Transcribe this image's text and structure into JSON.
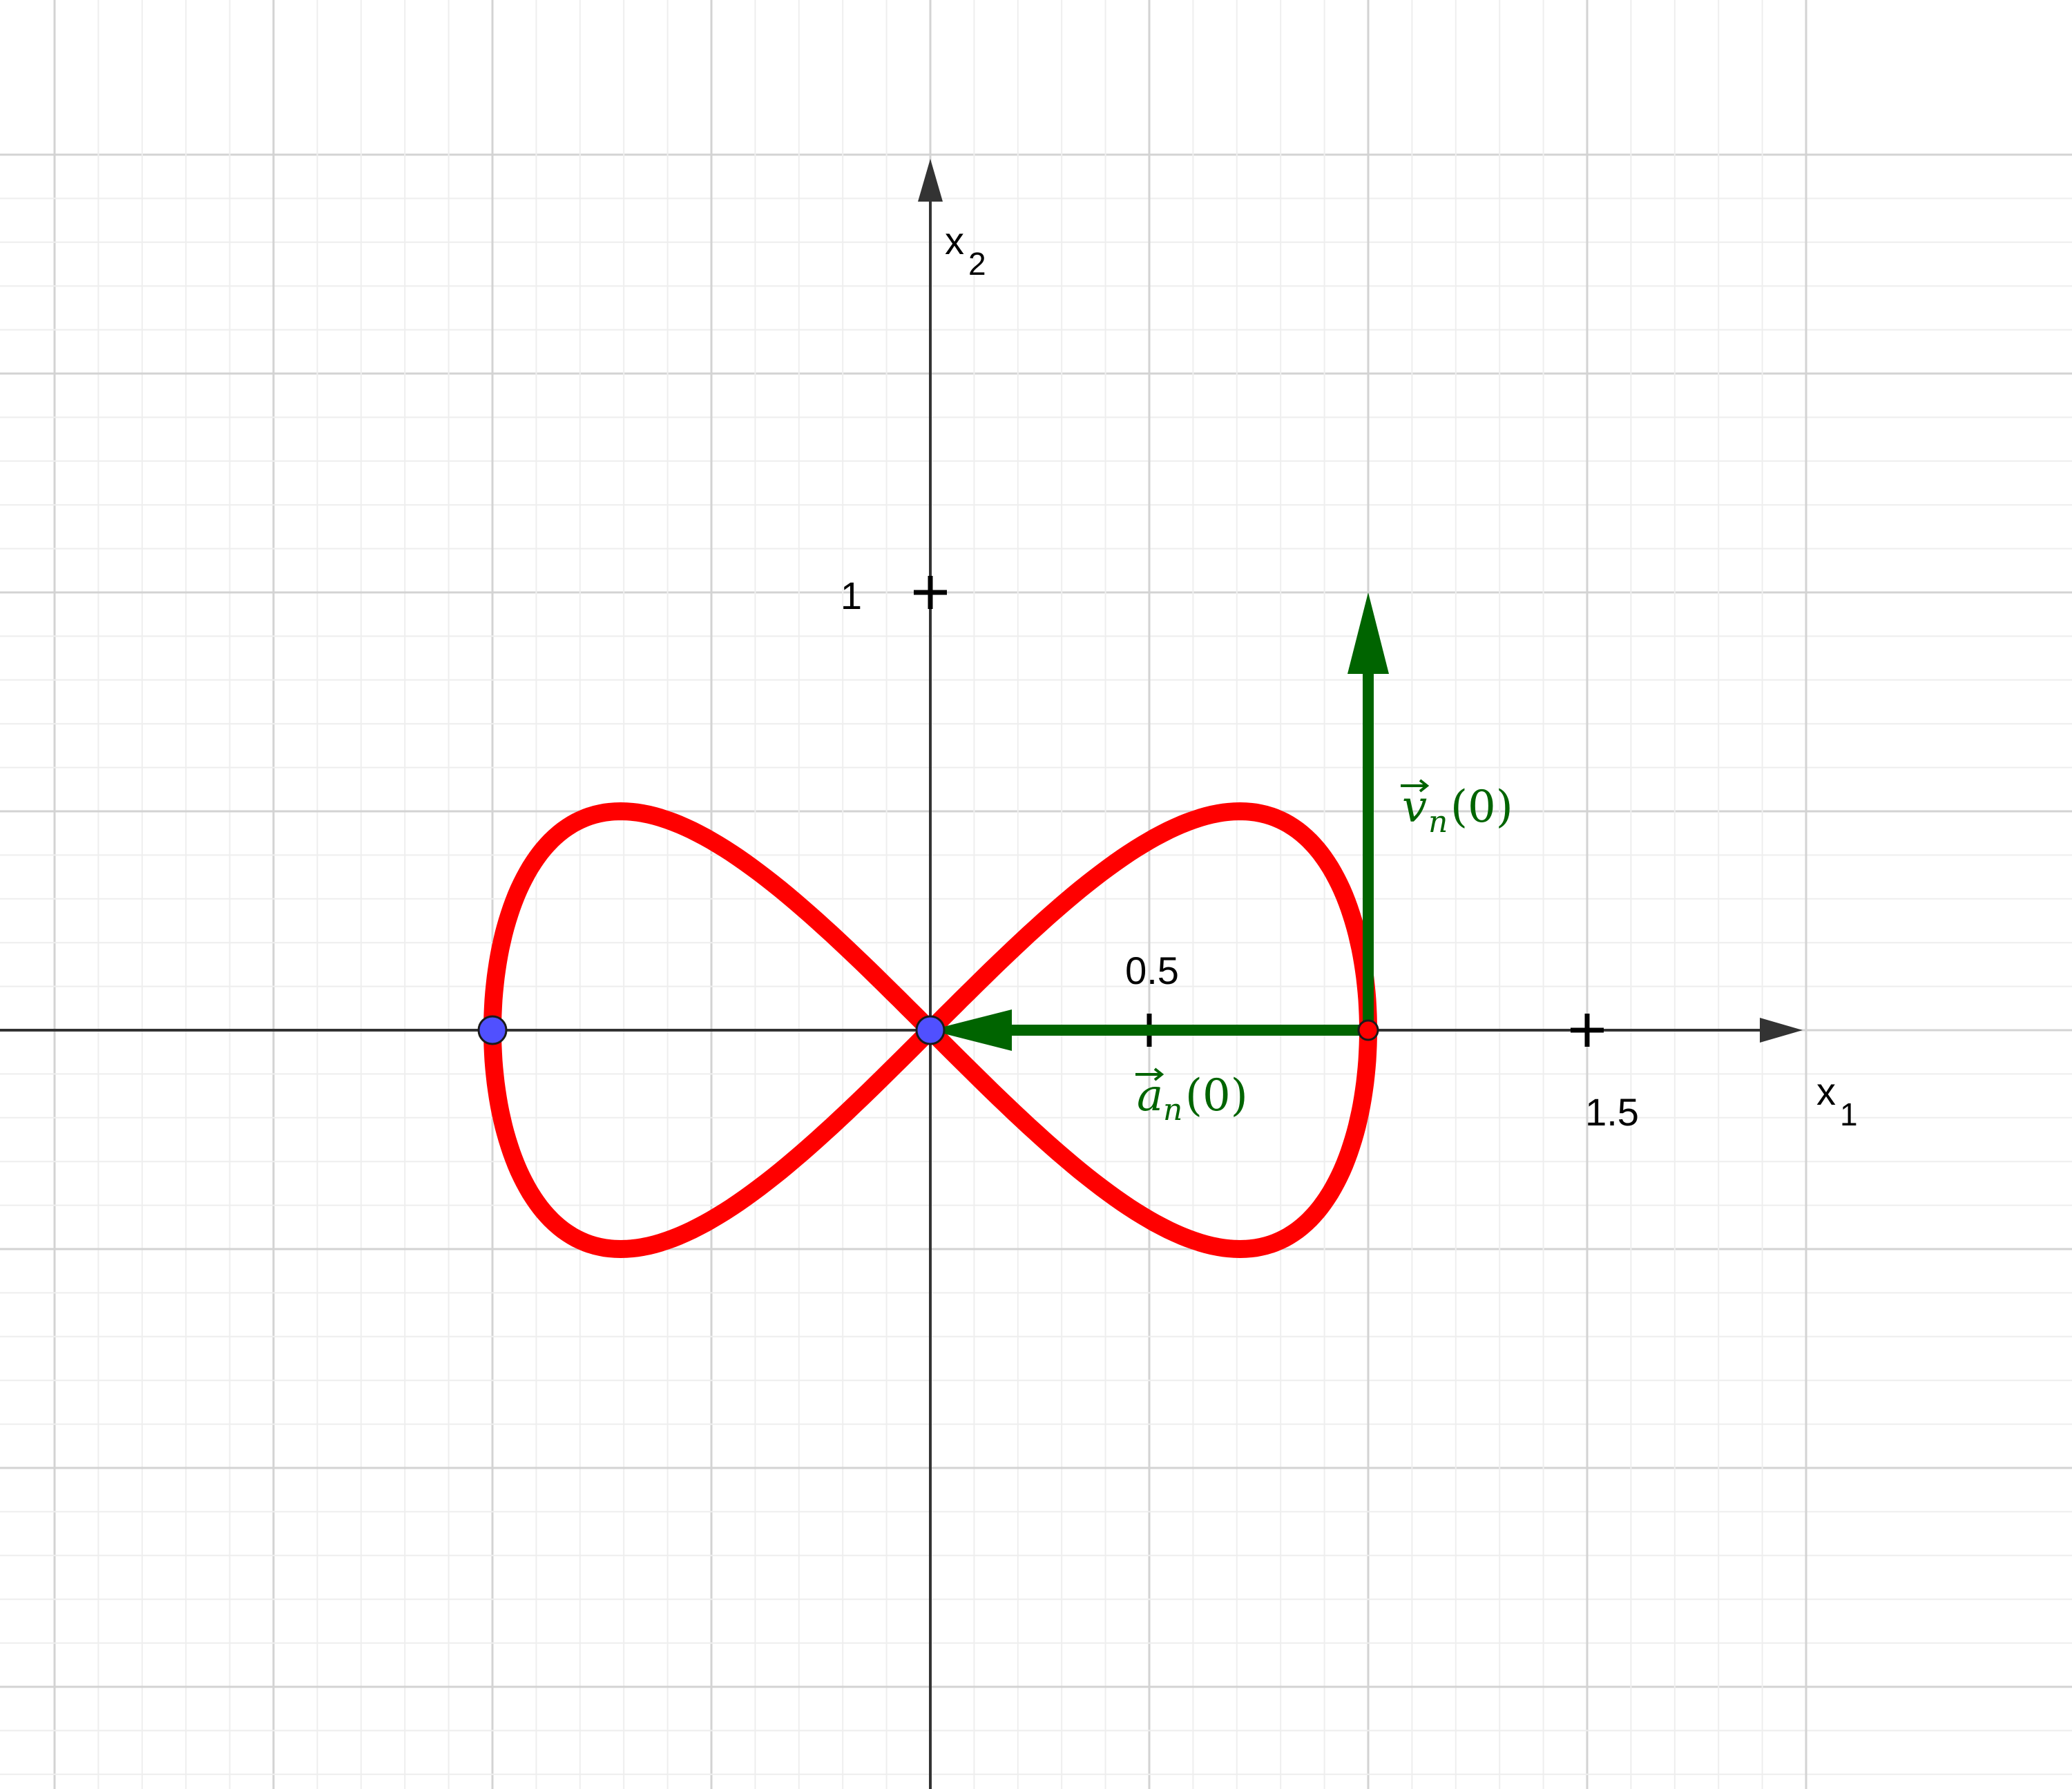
{
  "axes": {
    "x_label": "x",
    "x_label_sub": "1",
    "y_label": "x",
    "y_label_sub": "2",
    "x_tick_labels": [
      {
        "value": 0.5,
        "text": "0.5"
      },
      {
        "value": 1.5,
        "text": "1.5"
      }
    ],
    "y_tick_labels": [
      {
        "value": 1,
        "text": "1"
      }
    ],
    "x_ticks": [
      0.5,
      1.5
    ],
    "y_ticks": [
      1
    ]
  },
  "curve": {
    "color": "#ff0000",
    "equation_form": "lemniscate of Gerono: x1 = cos t, x2 = sin t cos t",
    "x_range": [
      -1,
      1
    ],
    "y_range": [
      -0.5,
      0.5
    ]
  },
  "points": [
    {
      "name": "left-extreme",
      "x": -1,
      "y": 0,
      "color": "#5050ff"
    },
    {
      "name": "origin",
      "x": 0,
      "y": 0,
      "color": "#5050ff"
    },
    {
      "name": "start",
      "x": 1,
      "y": 0,
      "color": "#ff0000"
    }
  ],
  "vectors": {
    "color": "#006400",
    "velocity": {
      "label_main": "v",
      "label_sub": "n",
      "label_arg": "(0)",
      "from": [
        1,
        0
      ],
      "to": [
        1,
        1
      ]
    },
    "acceleration": {
      "label_main": "a",
      "label_sub": "n",
      "label_arg": "(0)",
      "from": [
        1,
        0
      ],
      "to": [
        0,
        0
      ]
    }
  },
  "grid": {
    "major": true,
    "minor": true
  }
}
